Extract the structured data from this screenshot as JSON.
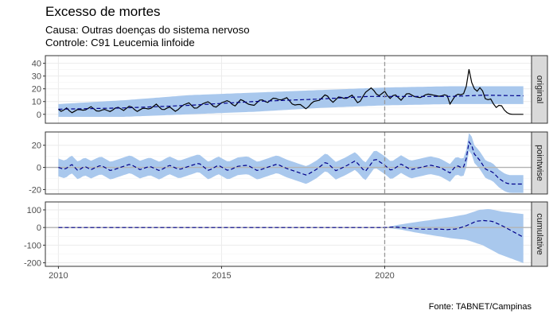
{
  "chart_data": {
    "type": "line",
    "title": "Excesso de mortes",
    "subtitle_lines": [
      "Causa: Outras doenças do sistema nervoso",
      "Controle: C91 Leucemia linfoide"
    ],
    "caption": "Fonte: TABNET/Campinas",
    "xlim": [
      2009.6,
      2024.5
    ],
    "x_ticks": [
      2010,
      2015,
      2020
    ],
    "x_tick_labels": [
      "2010",
      "2015",
      "2020"
    ],
    "intervention": 2020.0,
    "colors": {
      "actual": "#000000",
      "predicted": "#00008b",
      "band": "#a9c8ed",
      "zero": "#b3b3b3",
      "vline": "#999999"
    },
    "panels": [
      {
        "name": "original",
        "ylim": [
          -7,
          46
        ],
        "y_ticks": [
          0,
          10,
          20,
          30,
          40
        ],
        "y_tick_labels": [
          "0",
          "10",
          "20",
          "30",
          "40"
        ],
        "zero_line": false,
        "actual_knots": [
          [
            2010.0,
            4
          ],
          [
            2010.1,
            2
          ],
          [
            2010.25,
            5
          ],
          [
            2010.4,
            1
          ],
          [
            2010.6,
            4
          ],
          [
            2010.8,
            3
          ],
          [
            2011.0,
            6
          ],
          [
            2011.2,
            2
          ],
          [
            2011.4,
            4
          ],
          [
            2011.6,
            2
          ],
          [
            2011.8,
            6
          ],
          [
            2012.0,
            3
          ],
          [
            2012.2,
            7
          ],
          [
            2012.4,
            2
          ],
          [
            2012.6,
            5
          ],
          [
            2012.8,
            4
          ],
          [
            2013.0,
            8
          ],
          [
            2013.2,
            3
          ],
          [
            2013.4,
            6
          ],
          [
            2013.6,
            2
          ],
          [
            2013.8,
            7
          ],
          [
            2014.0,
            9
          ],
          [
            2014.2,
            4
          ],
          [
            2014.4,
            8
          ],
          [
            2014.6,
            10
          ],
          [
            2014.8,
            5
          ],
          [
            2015.0,
            9
          ],
          [
            2015.2,
            11
          ],
          [
            2015.4,
            6
          ],
          [
            2015.6,
            12
          ],
          [
            2015.8,
            8
          ],
          [
            2016.0,
            7
          ],
          [
            2016.2,
            12
          ],
          [
            2016.4,
            9
          ],
          [
            2016.6,
            13
          ],
          [
            2016.8,
            11
          ],
          [
            2017.0,
            13
          ],
          [
            2017.2,
            7
          ],
          [
            2017.4,
            8
          ],
          [
            2017.6,
            4
          ],
          [
            2017.8,
            10
          ],
          [
            2018.0,
            11
          ],
          [
            2018.2,
            16
          ],
          [
            2018.4,
            9
          ],
          [
            2018.6,
            14
          ],
          [
            2018.8,
            12
          ],
          [
            2019.0,
            15
          ],
          [
            2019.2,
            8
          ],
          [
            2019.4,
            17
          ],
          [
            2019.6,
            21
          ],
          [
            2019.8,
            14
          ],
          [
            2020.0,
            18
          ],
          [
            2020.15,
            12
          ],
          [
            2020.3,
            16
          ],
          [
            2020.5,
            11
          ],
          [
            2020.7,
            17
          ],
          [
            2020.9,
            14
          ],
          [
            2021.1,
            13
          ],
          [
            2021.3,
            16
          ],
          [
            2021.5,
            15
          ],
          [
            2021.7,
            14
          ],
          [
            2021.9,
            16
          ],
          [
            2022.0,
            8
          ],
          [
            2022.2,
            16
          ],
          [
            2022.4,
            15
          ],
          [
            2022.5,
            22
          ],
          [
            2022.6,
            38
          ],
          [
            2022.65,
            26
          ],
          [
            2022.8,
            17
          ],
          [
            2022.95,
            22
          ],
          [
            2023.1,
            11
          ],
          [
            2023.25,
            12
          ],
          [
            2023.4,
            5
          ],
          [
            2023.55,
            8
          ],
          [
            2023.7,
            2
          ],
          [
            2023.85,
            0
          ],
          [
            2024.3,
            0
          ]
        ],
        "predicted_knots": [
          [
            2010.0,
            4
          ],
          [
            2012.0,
            5
          ],
          [
            2014.0,
            7
          ],
          [
            2016.0,
            10
          ],
          [
            2018.0,
            12
          ],
          [
            2019.5,
            14
          ],
          [
            2020.0,
            14
          ],
          [
            2022.0,
            14
          ],
          [
            2023.0,
            15
          ],
          [
            2024.3,
            14.5
          ]
        ],
        "band_lower": [
          [
            2010.0,
            -2
          ],
          [
            2012.0,
            -2
          ],
          [
            2014.0,
            0
          ],
          [
            2016.0,
            2
          ],
          [
            2018.0,
            5
          ],
          [
            2020.0,
            7
          ],
          [
            2022.0,
            8
          ],
          [
            2024.3,
            8
          ]
        ],
        "band_upper": [
          [
            2010.0,
            8
          ],
          [
            2012.0,
            11
          ],
          [
            2014.0,
            15
          ],
          [
            2016.0,
            17
          ],
          [
            2018.0,
            19
          ],
          [
            2020.0,
            21
          ],
          [
            2022.0,
            22
          ],
          [
            2024.3,
            22
          ]
        ]
      },
      {
        "name": "pointwise",
        "ylim": [
          -24,
          32
        ],
        "y_ticks": [
          -20,
          0,
          20
        ],
        "y_tick_labels": [
          "-20",
          "0",
          "20"
        ],
        "zero_line": true,
        "pointwise_knots": [
          [
            2010.0,
            0
          ],
          [
            2010.2,
            -2
          ],
          [
            2010.4,
            3
          ],
          [
            2010.6,
            -3
          ],
          [
            2010.8,
            1
          ],
          [
            2011.0,
            -2
          ],
          [
            2011.3,
            2
          ],
          [
            2011.6,
            -3
          ],
          [
            2011.9,
            0
          ],
          [
            2012.2,
            3
          ],
          [
            2012.5,
            -2
          ],
          [
            2012.8,
            1
          ],
          [
            2013.1,
            -3
          ],
          [
            2013.4,
            2
          ],
          [
            2013.7,
            -2
          ],
          [
            2014.0,
            1
          ],
          [
            2014.3,
            4
          ],
          [
            2014.6,
            -3
          ],
          [
            2014.9,
            2
          ],
          [
            2015.2,
            -3
          ],
          [
            2015.5,
            1
          ],
          [
            2015.8,
            2
          ],
          [
            2016.1,
            -3
          ],
          [
            2016.4,
            0
          ],
          [
            2016.7,
            3
          ],
          [
            2017.0,
            -1
          ],
          [
            2017.3,
            -4
          ],
          [
            2017.6,
            -7
          ],
          [
            2017.9,
            -2
          ],
          [
            2018.2,
            5
          ],
          [
            2018.5,
            -3
          ],
          [
            2018.8,
            1
          ],
          [
            2019.1,
            6
          ],
          [
            2019.4,
            -4
          ],
          [
            2019.7,
            8
          ],
          [
            2020.0,
            2
          ],
          [
            2020.2,
            -3
          ],
          [
            2020.5,
            3
          ],
          [
            2020.8,
            -2
          ],
          [
            2021.1,
            0
          ],
          [
            2021.4,
            2
          ],
          [
            2021.7,
            0
          ],
          [
            2022.0,
            -5
          ],
          [
            2022.2,
            2
          ],
          [
            2022.4,
            -1
          ],
          [
            2022.5,
            8
          ],
          [
            2022.6,
            26
          ],
          [
            2022.75,
            12
          ],
          [
            2022.9,
            7
          ],
          [
            2023.1,
            -2
          ],
          [
            2023.3,
            -4
          ],
          [
            2023.5,
            -10
          ],
          [
            2023.7,
            -14
          ],
          [
            2023.85,
            -15
          ],
          [
            2024.3,
            -15
          ]
        ],
        "band_halfwidth": 8
      },
      {
        "name": "cumulative",
        "ylim": [
          -220,
          145
        ],
        "y_ticks": [
          -200,
          -100,
          0,
          100
        ],
        "y_tick_labels": [
          "-200",
          "-100",
          "0",
          "100"
        ],
        "zero_line": true,
        "cumulative_knots": [
          [
            2010.0,
            0
          ],
          [
            2020.0,
            0
          ],
          [
            2020.3,
            3
          ],
          [
            2020.8,
            -5
          ],
          [
            2021.2,
            -10
          ],
          [
            2021.6,
            -8
          ],
          [
            2021.9,
            -12
          ],
          [
            2022.2,
            -8
          ],
          [
            2022.5,
            10
          ],
          [
            2022.8,
            35
          ],
          [
            2023.0,
            40
          ],
          [
            2023.3,
            35
          ],
          [
            2023.6,
            10
          ],
          [
            2023.9,
            -20
          ],
          [
            2024.3,
            -60
          ]
        ],
        "band_lower": [
          [
            2010.0,
            0
          ],
          [
            2020.0,
            0
          ],
          [
            2020.5,
            -12
          ],
          [
            2021.0,
            -30
          ],
          [
            2021.5,
            -45
          ],
          [
            2022.0,
            -60
          ],
          [
            2022.5,
            -70
          ],
          [
            2023.0,
            -100
          ],
          [
            2023.5,
            -150
          ],
          [
            2024.3,
            -205
          ]
        ],
        "band_upper": [
          [
            2010.0,
            0
          ],
          [
            2020.0,
            0
          ],
          [
            2020.5,
            18
          ],
          [
            2021.0,
            32
          ],
          [
            2021.5,
            45
          ],
          [
            2022.0,
            58
          ],
          [
            2022.5,
            75
          ],
          [
            2022.9,
            100
          ],
          [
            2023.2,
            105
          ],
          [
            2023.6,
            90
          ],
          [
            2024.3,
            75
          ]
        ]
      }
    ]
  }
}
